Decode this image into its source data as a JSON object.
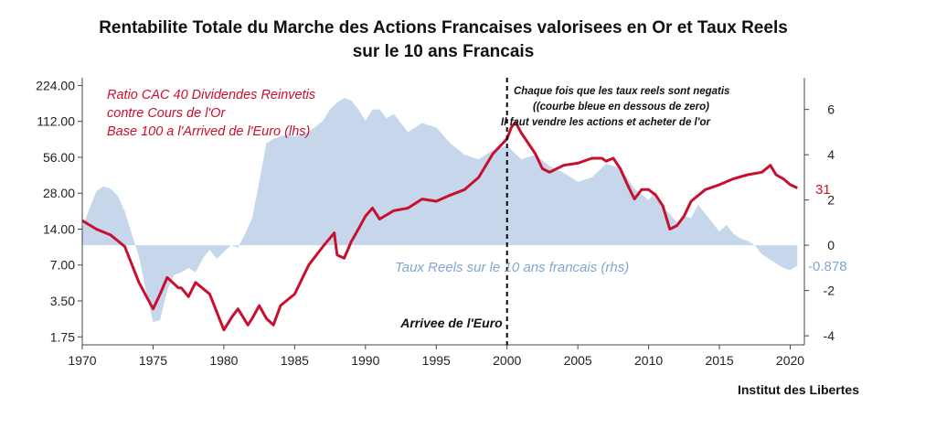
{
  "chart_data": {
    "type": "line",
    "title_line1": "Rentabilite Totale du Marche des Actions Francaises valorisees en Or et Taux Reels",
    "title_line2": "sur le 10 ans Francais",
    "source": "Institut des Libertes",
    "x_ticks": [
      "1970",
      "1975",
      "1980",
      "1985",
      "1990",
      "1995",
      "2000",
      "2005",
      "2010",
      "2015",
      "2020"
    ],
    "x_range": [
      1970,
      2021
    ],
    "y_left": {
      "scale": "log2",
      "range": [
        1.5,
        260
      ],
      "ticks": [
        "224.00",
        "112.00",
        "56.00",
        "28.00",
        "14.00",
        "7.00",
        "3.50",
        "1.75"
      ],
      "tick_values": [
        224,
        112,
        56,
        28,
        14,
        7,
        3.5,
        1.75
      ]
    },
    "y_right": {
      "range": [
        -4.4,
        7.4
      ],
      "ticks": [
        "6",
        "4",
        "2",
        "0",
        "-2",
        "-4"
      ],
      "tick_values": [
        6,
        4,
        2,
        0,
        -2,
        -4
      ]
    },
    "series": [
      {
        "name_lines": [
          "Ratio CAC 40 Dividendes Reinvetis",
          "contre Cours de l'Or",
          "Base 100 a l'Arrived de l'Euro (lhs)"
        ],
        "axis": "left",
        "color": "#c8102e",
        "type": "line",
        "end_label": "31",
        "points": [
          [
            1970,
            16.5
          ],
          [
            1971,
            14
          ],
          [
            1972,
            12.5
          ],
          [
            1973,
            10
          ],
          [
            1974,
            5
          ],
          [
            1975,
            3
          ],
          [
            1975.5,
            4
          ],
          [
            1976,
            5.5
          ],
          [
            1976.8,
            4.5
          ],
          [
            1977,
            4.5
          ],
          [
            1977.5,
            3.8
          ],
          [
            1978,
            5
          ],
          [
            1979,
            4
          ],
          [
            1980,
            2
          ],
          [
            1980.6,
            2.6
          ],
          [
            1981,
            3
          ],
          [
            1981.7,
            2.2
          ],
          [
            1982,
            2.5
          ],
          [
            1982.5,
            3.2
          ],
          [
            1983,
            2.5
          ],
          [
            1983.5,
            2.2
          ],
          [
            1984,
            3.2
          ],
          [
            1985,
            4
          ],
          [
            1986,
            7
          ],
          [
            1987,
            10
          ],
          [
            1987.8,
            13
          ],
          [
            1988,
            8.5
          ],
          [
            1988.5,
            8
          ],
          [
            1989,
            11
          ],
          [
            1989.5,
            14
          ],
          [
            1990,
            18
          ],
          [
            1990.5,
            21
          ],
          [
            1991,
            17
          ],
          [
            1992,
            20
          ],
          [
            1993,
            21
          ],
          [
            1994,
            25
          ],
          [
            1995,
            24
          ],
          [
            1996,
            27
          ],
          [
            1997,
            30
          ],
          [
            1998,
            38
          ],
          [
            1999,
            60
          ],
          [
            2000,
            80
          ],
          [
            2000.3,
            100
          ],
          [
            2000.6,
            110
          ],
          [
            2001,
            90
          ],
          [
            2002,
            60
          ],
          [
            2002.5,
            45
          ],
          [
            2003,
            42
          ],
          [
            2004,
            48
          ],
          [
            2005,
            50
          ],
          [
            2006,
            55
          ],
          [
            2006.7,
            55
          ],
          [
            2007,
            52
          ],
          [
            2007.5,
            55
          ],
          [
            2008,
            45
          ],
          [
            2008.5,
            33
          ],
          [
            2009,
            25
          ],
          [
            2009.5,
            30
          ],
          [
            2010,
            30
          ],
          [
            2010.5,
            27
          ],
          [
            2011,
            22
          ],
          [
            2011.5,
            14
          ],
          [
            2012,
            15
          ],
          [
            2012.5,
            18
          ],
          [
            2013,
            24
          ],
          [
            2014,
            30
          ],
          [
            2015,
            33
          ],
          [
            2016,
            37
          ],
          [
            2017,
            40
          ],
          [
            2018,
            42
          ],
          [
            2018.6,
            48
          ],
          [
            2019,
            40
          ],
          [
            2019.5,
            37
          ],
          [
            2020,
            33
          ],
          [
            2020.5,
            31
          ]
        ]
      },
      {
        "name": "Taux Reels sur le 10 ans francais (rhs)",
        "axis": "right",
        "color": "#c6d7ec",
        "type": "area",
        "end_label": "-0.878",
        "points": [
          [
            1970,
            0.8
          ],
          [
            1970.5,
            1.6
          ],
          [
            1971,
            2.4
          ],
          [
            1971.5,
            2.6
          ],
          [
            1972,
            2.5
          ],
          [
            1972.5,
            2.2
          ],
          [
            1973,
            1.5
          ],
          [
            1974,
            -0.5
          ],
          [
            1974.5,
            -2
          ],
          [
            1975,
            -3.4
          ],
          [
            1975.5,
            -3.3
          ],
          [
            1976,
            -2
          ],
          [
            1976.5,
            -1.3
          ],
          [
            1977,
            -1.2
          ],
          [
            1977.5,
            -1
          ],
          [
            1978,
            -1.2
          ],
          [
            1978.5,
            -0.6
          ],
          [
            1979,
            -0.2
          ],
          [
            1979.5,
            -0.6
          ],
          [
            1980,
            -0.3
          ],
          [
            1980.5,
            0
          ],
          [
            1981,
            -0.1
          ],
          [
            1981.5,
            0.5
          ],
          [
            1982,
            1.2
          ],
          [
            1982.5,
            2.8
          ],
          [
            1983,
            4.5
          ],
          [
            1983.5,
            4.7
          ],
          [
            1984,
            4.8
          ],
          [
            1984.5,
            4.9
          ],
          [
            1985,
            4.8
          ],
          [
            1986,
            5
          ],
          [
            1987,
            5.5
          ],
          [
            1987.5,
            6
          ],
          [
            1988,
            6.3
          ],
          [
            1988.5,
            6.5
          ],
          [
            1989,
            6.4
          ],
          [
            1989.5,
            6
          ],
          [
            1990,
            5.5
          ],
          [
            1990.5,
            6
          ],
          [
            1991,
            6
          ],
          [
            1991.5,
            5.6
          ],
          [
            1992,
            5.8
          ],
          [
            1993,
            5
          ],
          [
            1994,
            5.4
          ],
          [
            1995,
            5.2
          ],
          [
            1996,
            4.5
          ],
          [
            1997,
            4
          ],
          [
            1998,
            3.8
          ],
          [
            1999,
            4.2
          ],
          [
            2000,
            4.4
          ],
          [
            2001,
            3.8
          ],
          [
            2002,
            4
          ],
          [
            2003,
            3.5
          ],
          [
            2004,
            3.2
          ],
          [
            2005,
            2.8
          ],
          [
            2006,
            3
          ],
          [
            2007,
            3.6
          ],
          [
            2008,
            3.4
          ],
          [
            2009,
            2.5
          ],
          [
            2010,
            2
          ],
          [
            2010.5,
            2.4
          ],
          [
            2011,
            1.6
          ],
          [
            2011.5,
            1.4
          ],
          [
            2012,
            1
          ],
          [
            2012.5,
            1.3
          ],
          [
            2013,
            1.2
          ],
          [
            2013.5,
            1.8
          ],
          [
            2014,
            1.4
          ],
          [
            2014.5,
            1
          ],
          [
            2015,
            0.6
          ],
          [
            2015.5,
            0.9
          ],
          [
            2016,
            0.5
          ],
          [
            2016.5,
            0.3
          ],
          [
            2017,
            0.2
          ],
          [
            2017.5,
            0
          ],
          [
            2018,
            -0.4
          ],
          [
            2018.5,
            -0.6
          ],
          [
            2019,
            -0.8
          ],
          [
            2019.5,
            -1
          ],
          [
            2020,
            -1.1
          ],
          [
            2020.5,
            -0.9
          ]
        ]
      }
    ],
    "vline": {
      "x": 2000,
      "label": "Arrivee de l'Euro"
    },
    "note_lines": [
      "Chaque fois que les taux reels sont negatis",
      "((courbe bleue en dessous de zero)",
      "Il faut vendre les actions et acheter de l'or"
    ]
  }
}
